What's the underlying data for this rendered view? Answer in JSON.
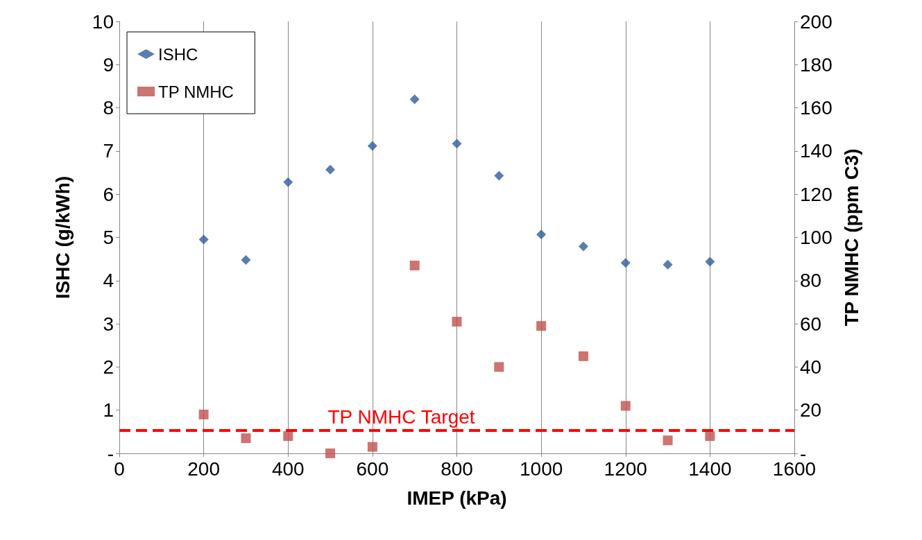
{
  "chart_data": {
    "type": "scatter",
    "xlabel": "IMEP (kPa)",
    "ylabel": "ISHC (g/kWh)",
    "y2label": "TP NMHC (ppm C3)",
    "x": [
      200,
      300,
      400,
      500,
      600,
      700,
      800,
      900,
      1000,
      1100,
      1200,
      1300,
      1400
    ],
    "series": [
      {
        "name": "ISHC",
        "color": "#2e5d9a",
        "marker": "diamond",
        "values": [
          4.95,
          4.48,
          6.28,
          6.57,
          7.12,
          8.2,
          7.17,
          6.43,
          5.07,
          4.79,
          4.41,
          4.37,
          4.44
        ]
      },
      {
        "name": "TP NMHC",
        "color": "#c0504d",
        "marker": "square",
        "axis": "y2",
        "values": [
          18,
          7,
          8,
          0,
          3,
          87,
          61,
          40,
          59,
          45,
          22,
          6,
          8
        ]
      }
    ],
    "xlim": [
      0,
      1600
    ],
    "xticks": [
      0,
      200,
      400,
      600,
      800,
      1000,
      1200,
      1400,
      1600
    ],
    "ylim": [
      0,
      10
    ],
    "yticks": [
      {
        "value": 0,
        "label": "-"
      },
      1,
      2,
      3,
      4,
      5,
      6,
      7,
      8,
      9,
      10
    ],
    "y2lim": [
      0,
      200
    ],
    "y2ticks": [
      {
        "value": 0,
        "label": "-"
      },
      20,
      40,
      60,
      80,
      100,
      120,
      140,
      160,
      180,
      200
    ],
    "ref_lines": [
      {
        "axis": "y2",
        "value": 10.6,
        "label": "TP NMHC Target",
        "color": "#ff0000",
        "line_style": "dashed"
      }
    ],
    "grid": "x",
    "legend": "top left"
  }
}
